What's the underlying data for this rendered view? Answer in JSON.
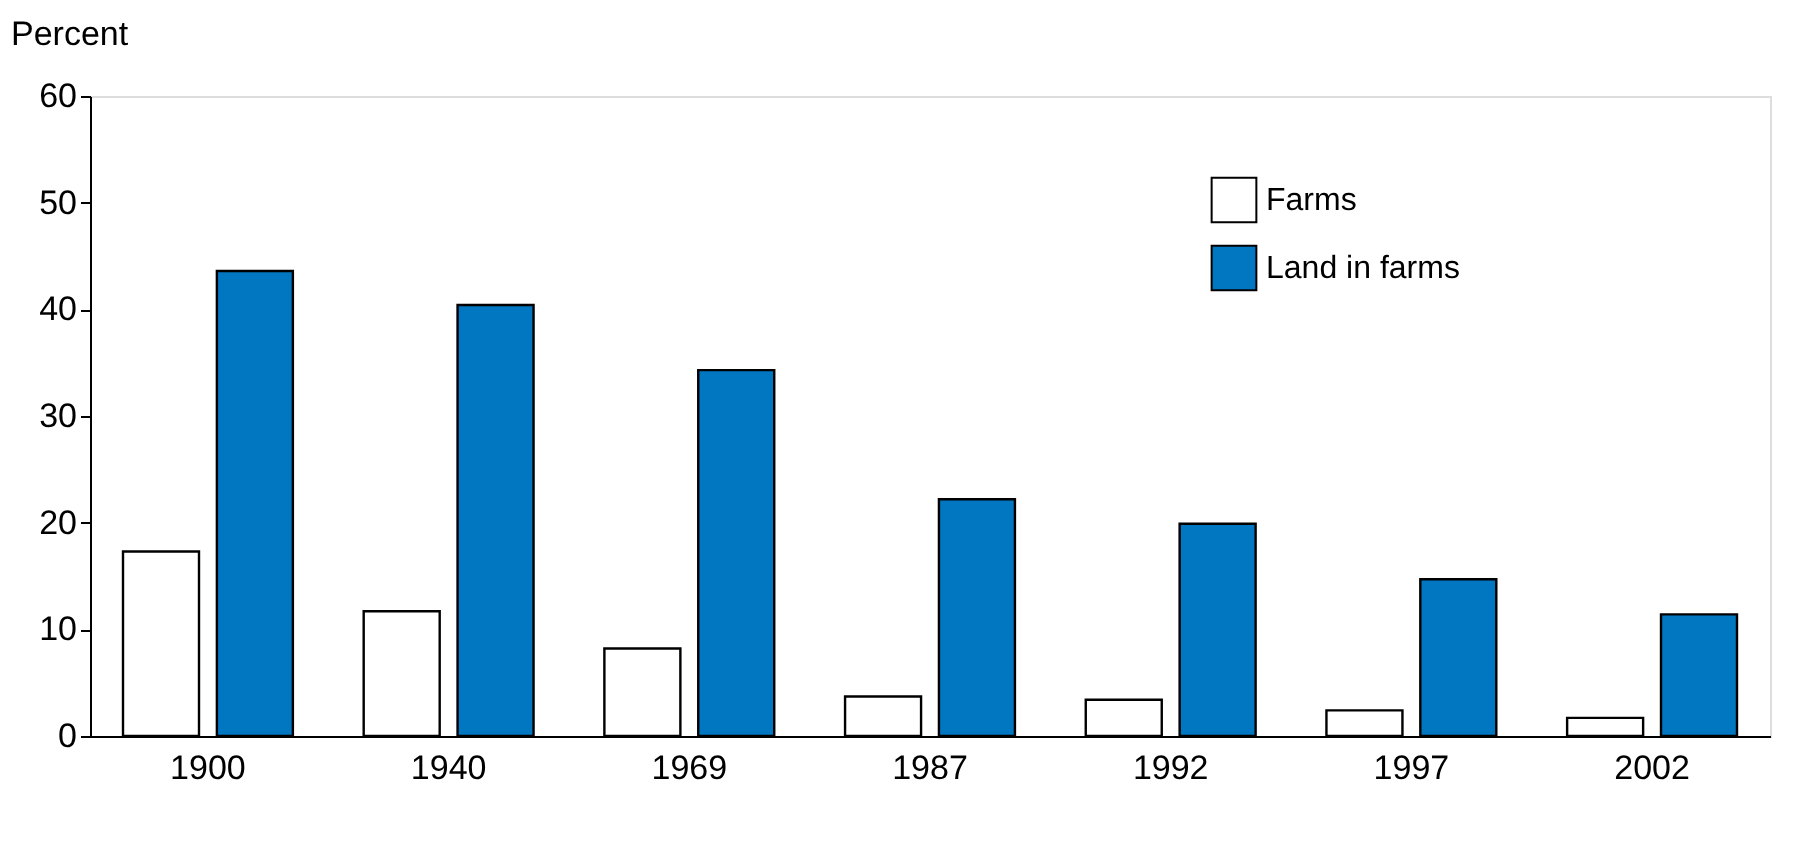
{
  "chart_data": {
    "type": "bar",
    "ylabel": "Percent",
    "categories": [
      "1900",
      "1940",
      "1969",
      "1987",
      "1992",
      "1997",
      "2002"
    ],
    "series": [
      {
        "name": "Farms",
        "color": "#ffffff",
        "values": [
          17.3,
          11.7,
          8.2,
          3.7,
          3.4,
          2.4,
          1.7
        ]
      },
      {
        "name": "Land in farms",
        "color": "#0077c0",
        "values": [
          43.6,
          40.4,
          34.3,
          22.2,
          19.9,
          14.7,
          11.4
        ]
      }
    ],
    "ylim": [
      0,
      60
    ],
    "yticks": [
      0,
      10,
      20,
      30,
      40,
      50,
      60
    ],
    "grid": false,
    "legend": "top right"
  }
}
